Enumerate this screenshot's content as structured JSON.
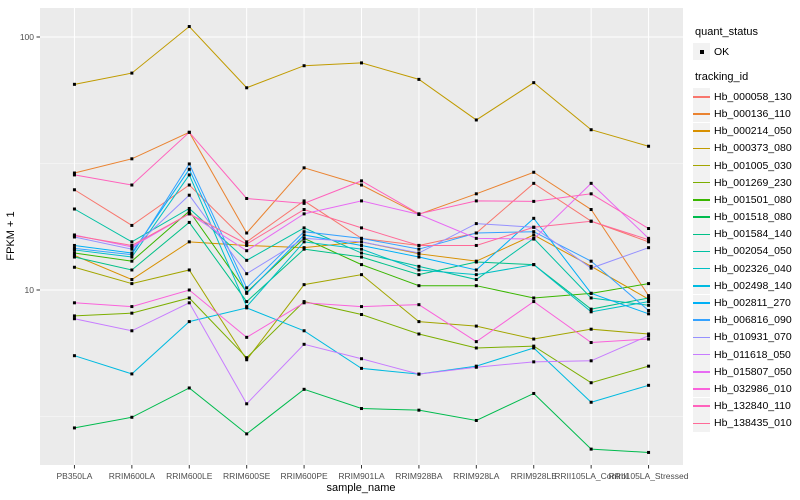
{
  "legend": {
    "quant_status_title": "quant_status",
    "ok_label": "OK",
    "tracking_id_title": "tracking_id"
  },
  "colors": {
    "panel_bg": "#EBEBEB",
    "grid_major": "#FFFFFF",
    "grid_minor": "#FFFFFF",
    "tick_label": "#4D4D4D",
    "axis_title": "#000000",
    "legend_key_bg": "#F2F2F2",
    "point": "#000000"
  },
  "chart_data": {
    "type": "line",
    "title": "",
    "xlabel": "sample_name",
    "ylabel": "FPKM + 1",
    "y_scale": "log10",
    "y_ticks": [
      10,
      100
    ],
    "y_minor_ticks": [
      3.162,
      31.62
    ],
    "ylim": [
      2,
      130
    ],
    "legend_position": "right",
    "grid": "on",
    "point_shape": "small black square (quant_status OK)",
    "categories": [
      "PB350LA",
      "RRIM600LA",
      "RRIM600LE",
      "RRIM600SE",
      "RRIM600PE",
      "RRIM901LA",
      "RRIM928BA",
      "RRIM928LA",
      "RRIM928LE",
      "RRII105LA_Control",
      "RRII105LA_Stressed"
    ],
    "series": [
      {
        "name": "Hb_000058_130",
        "color": "#F8766D",
        "quant_status": "OK",
        "values": [
          24.9,
          18.0,
          26.0,
          15.5,
          22.5,
          16.0,
          15.0,
          16.8,
          26.4,
          18.7,
          15.5
        ]
      },
      {
        "name": "Hb_000136_110",
        "color": "#EA8331",
        "quant_status": "OK",
        "values": [
          29.0,
          33.0,
          42.0,
          16.8,
          30.4,
          26.0,
          19.9,
          24.0,
          29.2,
          20.8,
          9.5
        ]
      },
      {
        "name": "Hb_000214_050",
        "color": "#D89000",
        "quant_status": "OK",
        "values": [
          13.7,
          11.0,
          15.5,
          15.0,
          14.7,
          15.5,
          13.9,
          13.0,
          16.5,
          12.4,
          9.2
        ]
      },
      {
        "name": "Hb_000373_080",
        "color": "#C09B00",
        "quant_status": "OK",
        "values": [
          65,
          72,
          110,
          63,
          77,
          79,
          68,
          47,
          66,
          43,
          37
        ]
      },
      {
        "name": "Hb_001005_030",
        "color": "#A3A500",
        "quant_status": "OK",
        "values": [
          12.3,
          10.6,
          12.0,
          5.3,
          10.5,
          11.5,
          7.5,
          7.2,
          6.4,
          7.0,
          6.7
        ]
      },
      {
        "name": "Hb_001269_230",
        "color": "#7CAE00",
        "quant_status": "OK",
        "values": [
          7.9,
          8.1,
          9.3,
          5.4,
          9.0,
          8.0,
          6.7,
          5.9,
          6.0,
          4.3,
          5.0
        ]
      },
      {
        "name": "Hb_001501_080",
        "color": "#39B600",
        "quant_status": "OK",
        "values": [
          14.0,
          13.0,
          20.5,
          9.8,
          16.0,
          12.6,
          10.4,
          10.4,
          9.3,
          9.7,
          10.6
        ]
      },
      {
        "name": "Hb_001518_080",
        "color": "#00BB4E",
        "quant_status": "OK",
        "values": [
          2.85,
          3.14,
          4.1,
          2.7,
          4.05,
          3.4,
          3.35,
          3.05,
          3.9,
          2.35,
          2.28
        ]
      },
      {
        "name": "Hb_001584_140",
        "color": "#00C087",
        "quant_status": "OK",
        "values": [
          13.5,
          12.0,
          18.5,
          9.0,
          14.5,
          13.5,
          11.5,
          12.9,
          12.6,
          8.4,
          9.3
        ]
      },
      {
        "name": "Hb_002054_050",
        "color": "#00C1A3",
        "quant_status": "OK",
        "values": [
          20.9,
          15.5,
          21.0,
          13.1,
          17.6,
          14.0,
          12.4,
          11.0,
          16.0,
          9.3,
          8.7
        ]
      },
      {
        "name": "Hb_002326_040",
        "color": "#00BFC4",
        "quant_status": "OK",
        "values": [
          14.4,
          13.5,
          28.5,
          8.6,
          15.5,
          14.5,
          12.0,
          11.5,
          12.6,
          8.2,
          9.0
        ]
      },
      {
        "name": "Hb_002498_140",
        "color": "#00BAE0",
        "quant_status": "OK",
        "values": [
          5.5,
          4.66,
          7.5,
          8.5,
          6.9,
          4.9,
          4.65,
          5.0,
          5.9,
          3.6,
          4.2
        ]
      },
      {
        "name": "Hb_002811_270",
        "color": "#00B0F6",
        "quant_status": "OK",
        "values": [
          15.0,
          14.0,
          30.0,
          9.7,
          16.5,
          15.0,
          13.5,
          12.0,
          19.2,
          9.7,
          8.05
        ]
      },
      {
        "name": "Hb_006816_090",
        "color": "#35A2FF",
        "quant_status": "OK",
        "values": [
          14.6,
          13.8,
          31.5,
          10.2,
          17.0,
          16.0,
          14.5,
          16.8,
          17.0,
          13.0,
          8.3
        ]
      },
      {
        "name": "Hb_010931_070",
        "color": "#9590FF",
        "quant_status": "OK",
        "values": [
          16.2,
          14.5,
          23.7,
          11.6,
          16.0,
          15.5,
          14.0,
          18.3,
          17.7,
          12.2,
          14.7
        ]
      },
      {
        "name": "Hb_011618_050",
        "color": "#C77CFF",
        "quant_status": "OK",
        "values": [
          7.7,
          6.9,
          8.9,
          3.55,
          6.1,
          5.35,
          4.65,
          4.95,
          5.2,
          5.25,
          6.6
        ]
      },
      {
        "name": "Hb_015807_050",
        "color": "#E76BF3",
        "quant_status": "OK",
        "values": [
          16.5,
          14.8,
          20.0,
          14.3,
          20.0,
          22.5,
          19.9,
          16.0,
          15.9,
          26.4,
          16.0
        ]
      },
      {
        "name": "Hb_032986_010",
        "color": "#FA62DB",
        "quant_status": "OK",
        "values": [
          8.9,
          8.6,
          10.0,
          6.5,
          8.9,
          8.6,
          8.75,
          6.25,
          9.0,
          6.2,
          6.4
        ]
      },
      {
        "name": "Hb_132840_110",
        "color": "#FF62BC",
        "quant_status": "OK",
        "values": [
          28.5,
          26.0,
          42.0,
          23.0,
          22.0,
          27.0,
          20.0,
          22.5,
          22.4,
          24.0,
          17.5
        ]
      },
      {
        "name": "Hb_138435_010",
        "color": "#FF6A98",
        "quant_status": "OK",
        "values": [
          16.4,
          15.0,
          20.0,
          15.2,
          20.8,
          17.6,
          15.0,
          15.0,
          17.7,
          18.7,
          15.8
        ]
      }
    ]
  }
}
